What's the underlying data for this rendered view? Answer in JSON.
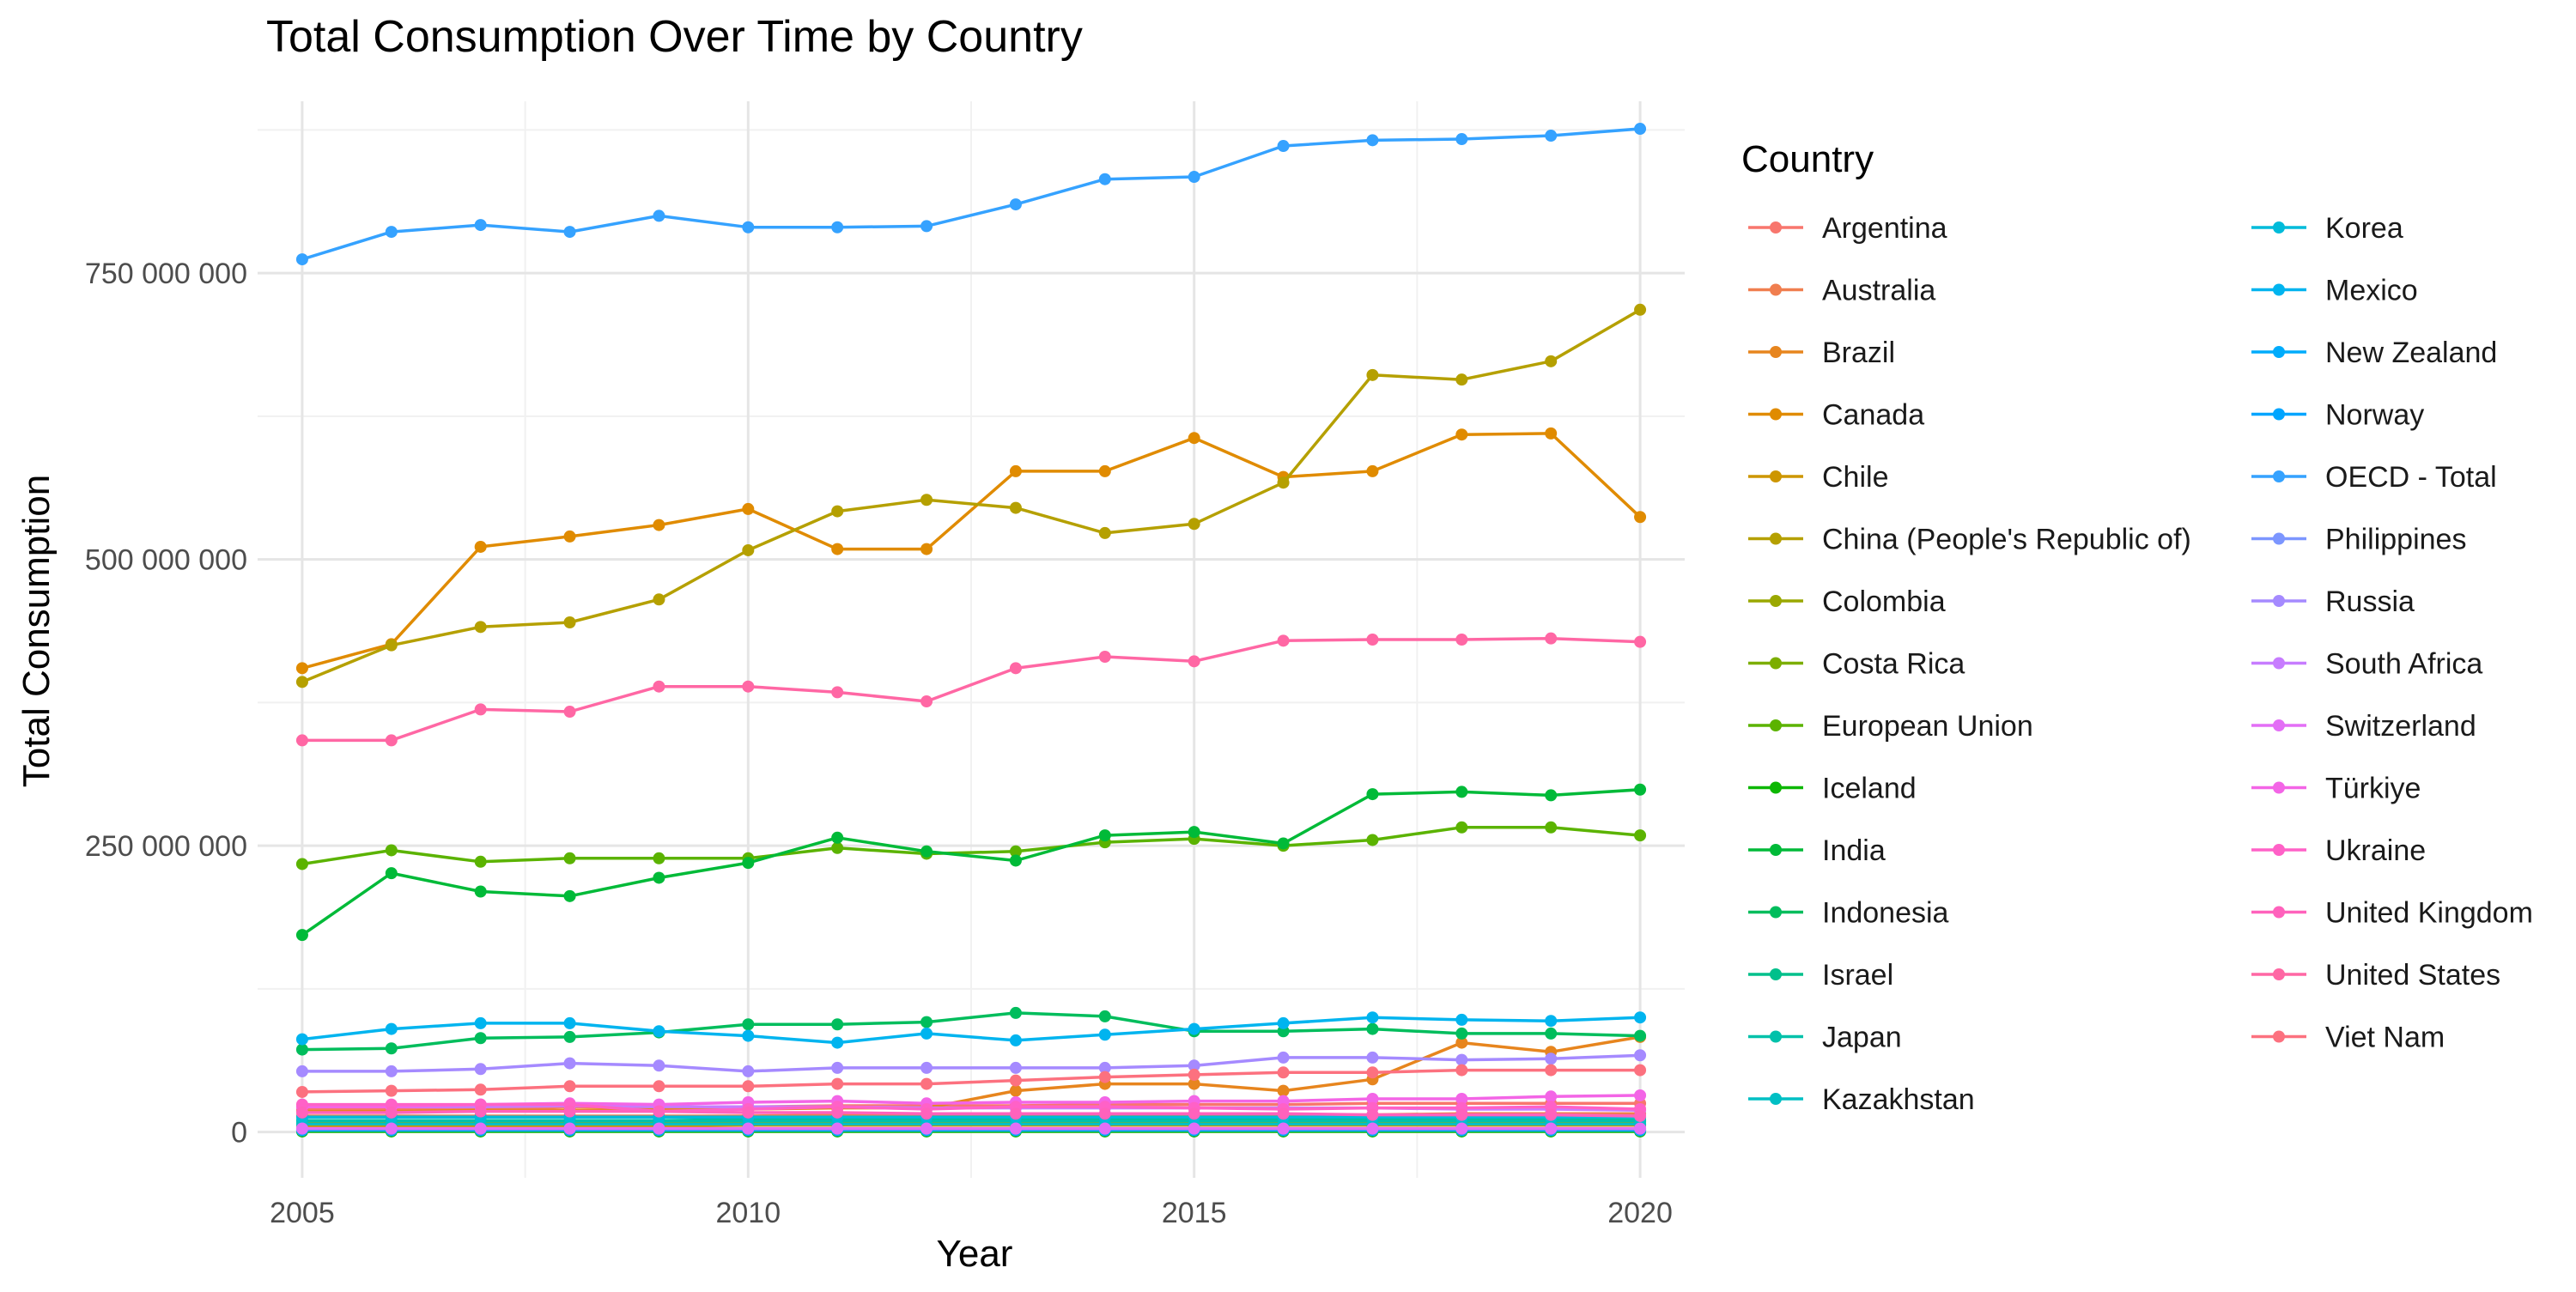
{
  "chart_data": {
    "type": "line",
    "title": "Total Consumption Over Time by Country",
    "xlabel": "Year",
    "ylabel": "Total Consumption",
    "xlim": [
      2004.5,
      2020.5
    ],
    "ylim": [
      -40000000,
      900000000
    ],
    "x_ticks": [
      2005,
      2010,
      2015,
      2020
    ],
    "y_ticks": [
      0,
      250000000,
      500000000,
      750000000
    ],
    "y_tick_labels": [
      "0",
      "250 000 000",
      "500 000 000",
      "750 000 000"
    ],
    "grid": true,
    "legend_title": "Country",
    "legend_position": "right",
    "x": [
      2005,
      2006,
      2007,
      2008,
      2009,
      2010,
      2011,
      2012,
      2013,
      2014,
      2015,
      2016,
      2017,
      2018,
      2019,
      2020
    ],
    "series": [
      {
        "name": "Argentina",
        "color": "#F8766D",
        "values": [
          20000000,
          20000000,
          20000000,
          22000000,
          22000000,
          22000000,
          23000000,
          23000000,
          23000000,
          24000000,
          24000000,
          24000000,
          25000000,
          25000000,
          25000000,
          25000000
        ]
      },
      {
        "name": "Australia",
        "color": "#F07E4F",
        "values": [
          14000000,
          14000000,
          14000000,
          14000000,
          14000000,
          14000000,
          15000000,
          15000000,
          15000000,
          15000000,
          15000000,
          15000000,
          15000000,
          16000000,
          16000000,
          16000000
        ]
      },
      {
        "name": "Brazil",
        "color": "#E7851E",
        "values": [
          18000000,
          18000000,
          19000000,
          19000000,
          20000000,
          20000000,
          21000000,
          21000000,
          36000000,
          42000000,
          42000000,
          36000000,
          46000000,
          78000000,
          70000000,
          83000000
        ]
      },
      {
        "name": "Canada",
        "color": "#E08B00",
        "values": [
          405000000,
          426000000,
          511000000,
          520000000,
          530000000,
          544000000,
          509000000,
          509000000,
          577000000,
          577000000,
          606000000,
          572000000,
          577000000,
          609000000,
          610000000,
          537000000
        ]
      },
      {
        "name": "Chile",
        "color": "#CD9600",
        "values": [
          5000000,
          5000000,
          5000000,
          5000000,
          5000000,
          6000000,
          6000000,
          6000000,
          6000000,
          6000000,
          6000000,
          6000000,
          6000000,
          6000000,
          6000000,
          6000000
        ]
      },
      {
        "name": "China (People's Republic of)",
        "color": "#B5A000",
        "values": [
          393000000,
          425000000,
          441000000,
          445000000,
          465000000,
          508000000,
          542000000,
          552000000,
          545000000,
          523000000,
          531000000,
          567000000,
          661000000,
          657000000,
          673000000,
          718000000
        ]
      },
      {
        "name": "Colombia",
        "color": "#9AA800",
        "values": [
          8000000,
          8000000,
          8000000,
          8000000,
          8000000,
          8000000,
          9000000,
          9000000,
          9000000,
          9000000,
          9000000,
          9000000,
          9000000,
          9000000,
          9000000,
          9000000
        ]
      },
      {
        "name": "Costa Rica",
        "color": "#7CAE00",
        "values": [
          1000000,
          1000000,
          1000000,
          1000000,
          1000000,
          1000000,
          1000000,
          1000000,
          1000000,
          1000000,
          1000000,
          1000000,
          1000000,
          1000000,
          1000000,
          1000000
        ]
      },
      {
        "name": "European Union",
        "color": "#5BB300",
        "values": [
          234000000,
          246000000,
          236000000,
          239000000,
          239000000,
          239000000,
          248000000,
          243000000,
          245000000,
          253000000,
          256000000,
          250000000,
          255000000,
          266000000,
          266000000,
          259000000
        ]
      },
      {
        "name": "Iceland",
        "color": "#0CB702",
        "values": [
          500000,
          500000,
          500000,
          500000,
          500000,
          500000,
          500000,
          500000,
          500000,
          500000,
          500000,
          500000,
          500000,
          500000,
          500000,
          500000
        ]
      },
      {
        "name": "India",
        "color": "#00BA38",
        "values": [
          172000000,
          226000000,
          210000000,
          206000000,
          222000000,
          235000000,
          257000000,
          245000000,
          237000000,
          259000000,
          262000000,
          252000000,
          295000000,
          297000000,
          294000000,
          299000000
        ]
      },
      {
        "name": "Indonesia",
        "color": "#00BD5C",
        "values": [
          72000000,
          73000000,
          82000000,
          83000000,
          87000000,
          94000000,
          94000000,
          96000000,
          104000000,
          101000000,
          88000000,
          88000000,
          90000000,
          86000000,
          86000000,
          84000000
        ]
      },
      {
        "name": "Israel",
        "color": "#00C08B",
        "values": [
          10000000,
          10000000,
          10000000,
          10000000,
          10000000,
          11000000,
          11000000,
          11000000,
          11000000,
          11000000,
          11000000,
          11000000,
          11000000,
          11000000,
          11000000,
          11000000
        ]
      },
      {
        "name": "Japan",
        "color": "#00C1AA",
        "values": [
          10000000,
          10000000,
          10000000,
          10000000,
          10000000,
          10000000,
          10000000,
          10000000,
          10000000,
          10000000,
          10000000,
          10000000,
          10000000,
          10000000,
          10000000,
          10000000
        ]
      },
      {
        "name": "Kazakhstan",
        "color": "#00BFC4",
        "values": [
          7000000,
          7000000,
          7000000,
          7000000,
          7000000,
          7000000,
          7000000,
          7000000,
          7000000,
          7000000,
          7000000,
          7000000,
          7000000,
          7000000,
          7000000,
          7000000
        ]
      },
      {
        "name": "Korea",
        "color": "#00BBDA",
        "values": [
          13000000,
          13000000,
          13000000,
          13000000,
          13000000,
          13000000,
          13000000,
          13000000,
          13000000,
          13000000,
          13000000,
          13000000,
          13000000,
          13000000,
          13000000,
          13000000
        ]
      },
      {
        "name": "Mexico",
        "color": "#00B4EF",
        "values": [
          81000000,
          90000000,
          95000000,
          95000000,
          88000000,
          84000000,
          78000000,
          86000000,
          80000000,
          85000000,
          90000000,
          95000000,
          100000000,
          98000000,
          97000000,
          100000000
        ]
      },
      {
        "name": "New Zealand",
        "color": "#00ACFC",
        "values": [
          1500000,
          1500000,
          1500000,
          1500000,
          1500000,
          1500000,
          1500000,
          1500000,
          1500000,
          1500000,
          1500000,
          1500000,
          1500000,
          1500000,
          1500000,
          1500000
        ]
      },
      {
        "name": "Norway",
        "color": "#00A5FF",
        "values": [
          2000000,
          2000000,
          2000000,
          2000000,
          2000000,
          2000000,
          2000000,
          2000000,
          2000000,
          2000000,
          2000000,
          2000000,
          2000000,
          2000000,
          2000000,
          2000000
        ]
      },
      {
        "name": "OECD - Total",
        "color": "#35A2FF",
        "values": [
          762000000,
          786000000,
          792000000,
          786000000,
          800000000,
          790000000,
          790000000,
          791000000,
          810000000,
          832000000,
          834000000,
          861000000,
          866000000,
          867000000,
          870000000,
          876000000
        ]
      },
      {
        "name": "Philippines",
        "color": "#7C96FF",
        "values": [
          3000000,
          3000000,
          3000000,
          3000000,
          3000000,
          3000000,
          3000000,
          3000000,
          3000000,
          3000000,
          3000000,
          3000000,
          3000000,
          3000000,
          3000000,
          3000000
        ]
      },
      {
        "name": "Russia",
        "color": "#A58AFF",
        "values": [
          53000000,
          53000000,
          55000000,
          60000000,
          58000000,
          53000000,
          56000000,
          56000000,
          56000000,
          56000000,
          58000000,
          65000000,
          65000000,
          63000000,
          64000000,
          67000000
        ]
      },
      {
        "name": "South Africa",
        "color": "#C77CFF",
        "values": [
          22000000,
          22000000,
          22000000,
          23000000,
          22000000,
          22000000,
          22000000,
          21000000,
          21000000,
          21000000,
          21000000,
          21000000,
          21000000,
          20000000,
          20000000,
          19000000
        ]
      },
      {
        "name": "Switzerland",
        "color": "#E36EF6",
        "values": [
          3000000,
          3000000,
          3000000,
          3000000,
          3000000,
          3000000,
          3000000,
          3000000,
          3000000,
          3000000,
          3000000,
          3000000,
          3000000,
          3000000,
          3000000,
          3000000
        ]
      },
      {
        "name": "Türkiye",
        "color": "#F365E6",
        "values": [
          22000000,
          22000000,
          24000000,
          25000000,
          24000000,
          26000000,
          27000000,
          25000000,
          26000000,
          26000000,
          27000000,
          27000000,
          29000000,
          29000000,
          31000000,
          32000000
        ]
      },
      {
        "name": "Ukraine",
        "color": "#FF61C7",
        "values": [
          24000000,
          24000000,
          24000000,
          24000000,
          18000000,
          20000000,
          22000000,
          20000000,
          22000000,
          22000000,
          21000000,
          20000000,
          21000000,
          21000000,
          22000000,
          20000000
        ]
      },
      {
        "name": "United Kingdom",
        "color": "#FF62BC",
        "values": [
          17000000,
          17000000,
          18000000,
          18000000,
          18000000,
          17000000,
          17000000,
          16000000,
          16000000,
          16000000,
          16000000,
          16000000,
          15000000,
          15000000,
          15000000,
          14000000
        ]
      },
      {
        "name": "United States",
        "color": "#FF67A4",
        "values": [
          342000000,
          342000000,
          369000000,
          367000000,
          389000000,
          389000000,
          384000000,
          376000000,
          405000000,
          415000000,
          411000000,
          429000000,
          430000000,
          430000000,
          431000000,
          428000000
        ]
      },
      {
        "name": "Viet Nam",
        "color": "#FC717F",
        "values": [
          35000000,
          36000000,
          37000000,
          40000000,
          40000000,
          40000000,
          42000000,
          42000000,
          45000000,
          48000000,
          50000000,
          52000000,
          52000000,
          54000000,
          54000000,
          54000000
        ]
      }
    ]
  }
}
